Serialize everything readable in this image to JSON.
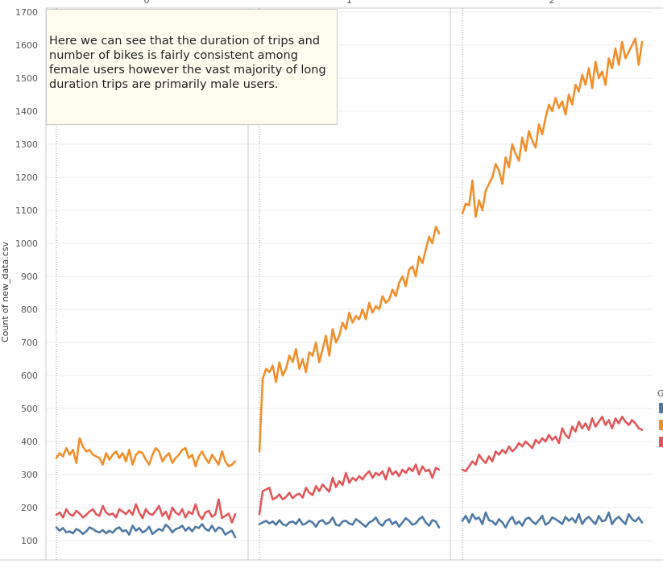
{
  "annotation_text": "Here we can see that the duration of trips and number of bikes is fairly consistent among female users however the vast majority of long duration trips are primarily male users.",
  "legend_title": "G",
  "colors": {
    "blue": "#4e79a7",
    "orange": "#f28e2b",
    "red": "#e15759",
    "grid": "#eeeeee",
    "border": "#c8c8c8"
  },
  "chart_data": {
    "type": "line",
    "ylabel": "Count of new_data.csv",
    "ylim": [
      90,
      1700
    ],
    "yticks": [
      100,
      200,
      300,
      400,
      500,
      600,
      700,
      800,
      900,
      1000,
      1100,
      1200,
      1300,
      1400,
      1500,
      1600,
      1700
    ],
    "panels": [
      {
        "label": "0",
        "series": [
          {
            "color": "blue",
            "values": [
              140,
              130,
              138,
              125,
              128,
              122,
              135,
              130,
              120,
              128,
              140,
              135,
              128,
              125,
              132,
              122,
              130,
              124,
              135,
              140,
              128,
              132,
              118,
              145,
              130,
              138,
              125,
              130,
              142,
              120,
              128,
              135,
              130,
              148,
              140,
              125,
              135,
              138,
              145,
              130,
              140,
              128,
              142,
              138,
              150,
              135,
              130,
              145,
              128,
              140,
              135,
              118,
              125,
              130,
              110
            ]
          },
          {
            "color": "orange",
            "values": [
              350,
              365,
              355,
              380,
              360,
              375,
              335,
              410,
              385,
              370,
              375,
              360,
              355,
              350,
              330,
              365,
              345,
              360,
              370,
              350,
              365,
              340,
              375,
              330,
              360,
              370,
              365,
              345,
              330,
              360,
              380,
              370,
              340,
              355,
              365,
              335,
              350,
              360,
              375,
              380,
              350,
              360,
              325,
              355,
              370,
              350,
              335,
              360,
              345,
              330,
              370,
              340,
              325,
              330,
              340
            ]
          },
          {
            "color": "red",
            "values": [
              178,
              185,
              170,
              195,
              180,
              175,
              190,
              182,
              170,
              178,
              188,
              195,
              180,
              175,
              205,
              185,
              178,
              182,
              170,
              195,
              188,
              180,
              192,
              178,
              210,
              185,
              168,
              195,
              182,
              178,
              190,
              205,
              175,
              188,
              165,
              200,
              185,
              178,
              195,
              170,
              188,
              180,
              210,
              178,
              165,
              185,
              190,
              172,
              180,
              225,
              168,
              175,
              182,
              155,
              180
            ]
          }
        ]
      },
      {
        "label": "1",
        "series": [
          {
            "color": "blue",
            "values": [
              150,
              155,
              160,
              152,
              158,
              148,
              162,
              150,
              145,
              155,
              158,
              150,
              165,
              148,
              152,
              160,
              155,
              142,
              158,
              162,
              150,
              155,
              170,
              148,
              145,
              158,
              160,
              152,
              148,
              165,
              158,
              150,
              142,
              155,
              160,
              170,
              152,
              145,
              160,
              165,
              150,
              158,
              142,
              155,
              168,
              160,
              148,
              152,
              165,
              172,
              155,
              145,
              162,
              158,
              140
            ]
          },
          {
            "color": "orange",
            "values": [
              370,
              590,
              620,
              610,
              630,
              580,
              640,
              600,
              620,
              660,
              640,
              680,
              620,
              650,
              610,
              670,
              660,
              700,
              640,
              680,
              720,
              660,
              740,
              700,
              720,
              760,
              740,
              790,
              760,
              780,
              770,
              800,
              770,
              820,
              790,
              810,
              800,
              840,
              820,
              830,
              860,
              840,
              880,
              900,
              870,
              920,
              930,
              900,
              960,
              940,
              980,
              1020,
              1000,
              1050,
              1030
            ]
          },
          {
            "color": "red",
            "values": [
              180,
              250,
              255,
              260,
              225,
              230,
              240,
              225,
              232,
              245,
              228,
              238,
              242,
              230,
              260,
              245,
              238,
              265,
              250,
              270,
              258,
              248,
              290,
              262,
              280,
              268,
              305,
              275,
              290,
              282,
              295,
              285,
              300,
              310,
              290,
              305,
              298,
              310,
              285,
              320,
              300,
              310,
              295,
              315,
              305,
              320,
              310,
              330,
              300,
              325,
              310,
              315,
              290,
              320,
              315
            ]
          }
        ]
      },
      {
        "label": "2",
        "series": [
          {
            "color": "blue",
            "values": [
              160,
              175,
              155,
              180,
              165,
              170,
              150,
              185,
              162,
              158,
              148,
              165,
              155,
              140,
              160,
              172,
              150,
              158,
              145,
              165,
              170,
              158,
              150,
              162,
              175,
              148,
              155,
              170,
              165,
              158,
              150,
              172,
              160,
              168,
              155,
              180,
              150,
              165,
              172,
              160,
              150,
              175,
              158,
              162,
              185,
              150,
              165,
              172,
              160,
              150,
              180,
              165,
              158,
              170,
              155
            ]
          },
          {
            "color": "orange",
            "values": [
              1090,
              1120,
              1115,
              1190,
              1080,
              1130,
              1100,
              1160,
              1180,
              1200,
              1240,
              1220,
              1180,
              1260,
              1230,
              1300,
              1270,
              1250,
              1320,
              1280,
              1340,
              1310,
              1290,
              1360,
              1330,
              1380,
              1420,
              1400,
              1440,
              1410,
              1430,
              1390,
              1450,
              1420,
              1480,
              1460,
              1510,
              1480,
              1530,
              1470,
              1550,
              1500,
              1520,
              1480,
              1560,
              1530,
              1590,
              1540,
              1610,
              1560,
              1580,
              1600,
              1620,
              1540,
              1610
            ]
          },
          {
            "color": "red",
            "values": [
              315,
              310,
              325,
              340,
              330,
              360,
              345,
              335,
              355,
              340,
              370,
              360,
              375,
              365,
              385,
              370,
              380,
              395,
              385,
              400,
              390,
              380,
              405,
              395,
              410,
              400,
              420,
              405,
              415,
              395,
              440,
              420,
              410,
              445,
              430,
              460,
              440,
              455,
              435,
              470,
              445,
              460,
              475,
              450,
              465,
              440,
              470,
              455,
              475,
              460,
              450,
              465,
              455,
              440,
              435
            ]
          }
        ]
      }
    ]
  }
}
